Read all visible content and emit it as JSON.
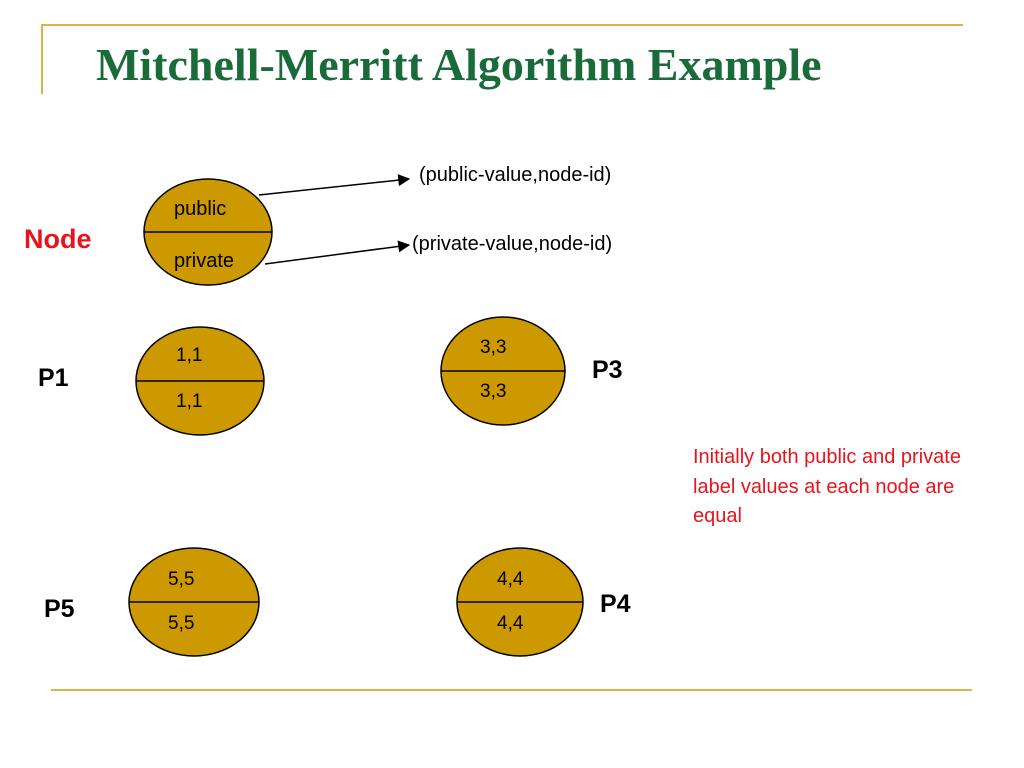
{
  "slide": {
    "title": "Mitchell-Merritt Algorithm Example"
  },
  "legend": {
    "node_label": "Node",
    "top_field": "public",
    "bottom_field": "private",
    "top_annotation": "(public-value,node-id)",
    "bottom_annotation": "(private-value,node-id)"
  },
  "processes": [
    {
      "name": "P1",
      "public": "1,1",
      "private": "1,1"
    },
    {
      "name": "P3",
      "public": "3,3",
      "private": "3,3"
    },
    {
      "name": "P5",
      "public": "5,5",
      "private": "5,5"
    },
    {
      "name": "P4",
      "public": "4,4",
      "private": "4,4"
    }
  ],
  "note": "Initially both public and private label values at each node are equal",
  "colors": {
    "title": "#1a6b3a",
    "node_fill": "#cc9900",
    "highlight_text": "#e8141c",
    "rule": "#e0b243"
  }
}
